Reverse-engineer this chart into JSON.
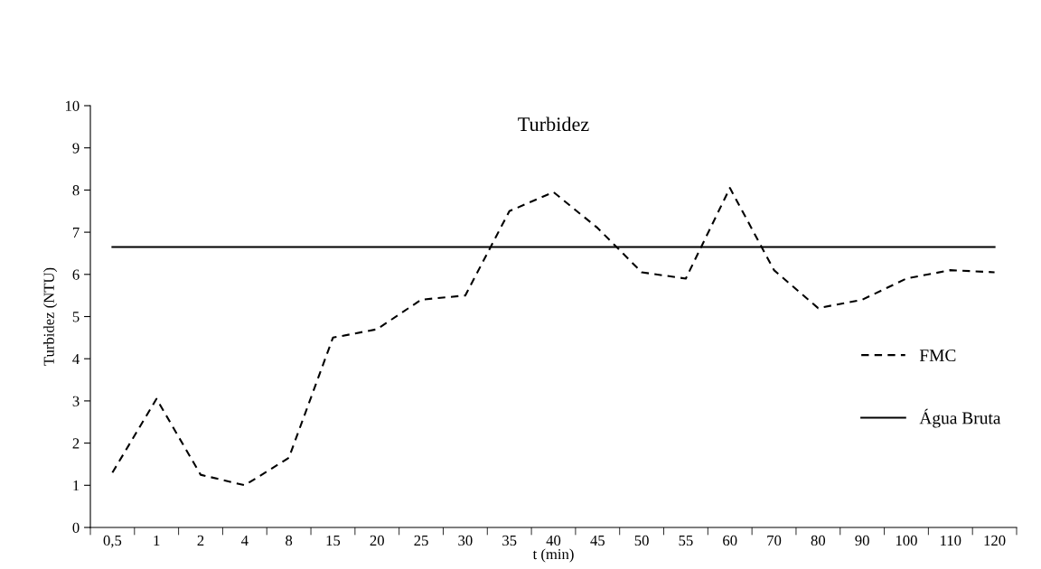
{
  "chart_data": {
    "type": "line",
    "title": "Turbidez",
    "xlabel": "t (min)",
    "ylabel": "Turbidez (NTU)",
    "categories": [
      "0,5",
      "1",
      "2",
      "4",
      "8",
      "15",
      "20",
      "25",
      "30",
      "35",
      "40",
      "45",
      "50",
      "55",
      "60",
      "70",
      "80",
      "90",
      "100",
      "110",
      "120"
    ],
    "series": [
      {
        "name": "FMC",
        "color": "#000000",
        "line_style": "dashed",
        "values": [
          1.3,
          3.05,
          1.25,
          1.0,
          1.65,
          4.5,
          4.7,
          5.4,
          5.5,
          7.5,
          7.95,
          7.1,
          6.05,
          5.9,
          8.05,
          6.1,
          5.2,
          5.4,
          5.9,
          6.1,
          6.05
        ]
      },
      {
        "name": "Água Bruta",
        "color": "#000000",
        "line_style": "solid",
        "values": [
          6.65,
          6.65,
          6.65,
          6.65,
          6.65,
          6.65,
          6.65,
          6.65,
          6.65,
          6.65,
          6.65,
          6.65,
          6.65,
          6.65,
          6.65,
          6.65,
          6.65,
          6.65,
          6.65,
          6.65,
          6.65
        ]
      }
    ],
    "ylim": [
      0,
      10
    ],
    "yticks": [
      0,
      1,
      2,
      3,
      4,
      5,
      6,
      7,
      8,
      9,
      10
    ],
    "grid": false,
    "legend": "right",
    "marker": "none"
  }
}
